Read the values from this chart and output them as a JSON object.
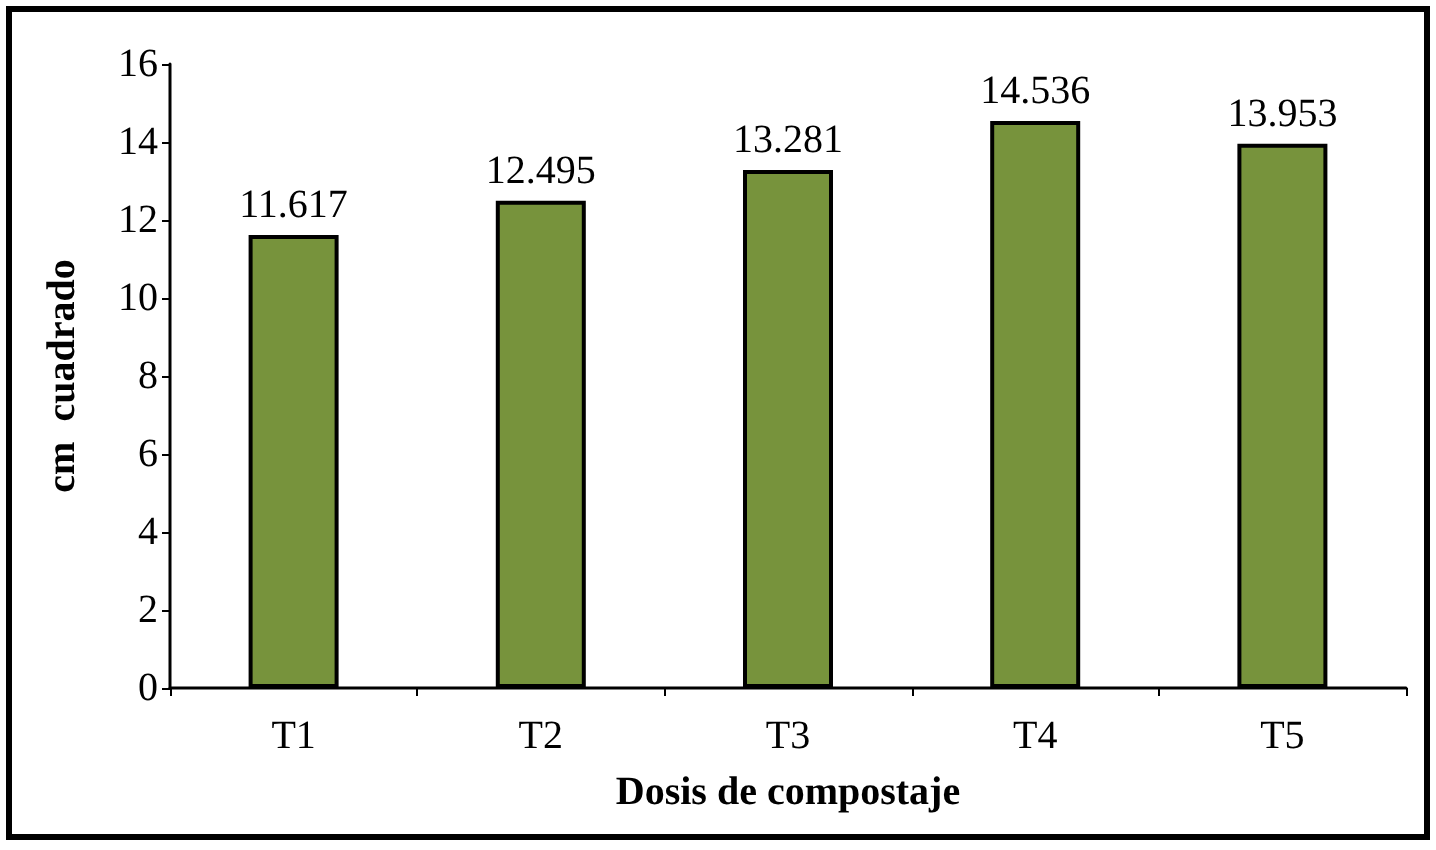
{
  "chart_data": {
    "type": "bar",
    "xlabel": "Dosis de compostaje",
    "ylabel": "cm  cuadrado",
    "categories": [
      "T1",
      "T2",
      "T3",
      "T4",
      "T5"
    ],
    "values": [
      11.617,
      12.495,
      13.281,
      14.536,
      13.953
    ],
    "color": "#77933c",
    "ylim": [
      0,
      16
    ],
    "yticks": [
      0,
      2,
      4,
      6,
      8,
      10,
      12,
      14,
      16
    ],
    "data_labels": true
  }
}
